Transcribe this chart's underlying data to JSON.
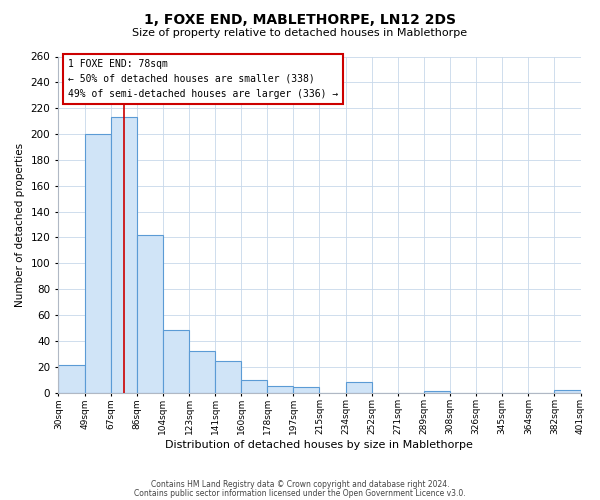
{
  "title": "1, FOXE END, MABLETHORPE, LN12 2DS",
  "subtitle": "Size of property relative to detached houses in Mablethorpe",
  "xlabel": "Distribution of detached houses by size in Mablethorpe",
  "ylabel": "Number of detached properties",
  "bin_labels": [
    "30sqm",
    "49sqm",
    "67sqm",
    "86sqm",
    "104sqm",
    "123sqm",
    "141sqm",
    "160sqm",
    "178sqm",
    "197sqm",
    "215sqm",
    "234sqm",
    "252sqm",
    "271sqm",
    "289sqm",
    "308sqm",
    "326sqm",
    "345sqm",
    "364sqm",
    "382sqm",
    "401sqm"
  ],
  "bar_values": [
    21,
    200,
    213,
    122,
    48,
    32,
    24,
    10,
    5,
    4,
    0,
    8,
    0,
    0,
    1,
    0,
    0,
    0,
    0,
    2
  ],
  "bar_color": "#d0e4f7",
  "bar_edge_color": "#5b9bd5",
  "property_line_label": "1 FOXE END: 78sqm",
  "annotation_line1": "← 50% of detached houses are smaller (338)",
  "annotation_line2": "49% of semi-detached houses are larger (336) →",
  "annotation_box_edge": "#cc0000",
  "vline_color": "#cc0000",
  "vline_x_index": 2.5,
  "ylim": [
    0,
    260
  ],
  "yticks": [
    0,
    20,
    40,
    60,
    80,
    100,
    120,
    140,
    160,
    180,
    200,
    220,
    240,
    260
  ],
  "footer1": "Contains HM Land Registry data © Crown copyright and database right 2024.",
  "footer2": "Contains public sector information licensed under the Open Government Licence v3.0.",
  "background_color": "#ffffff",
  "grid_color": "#c8d8ea"
}
